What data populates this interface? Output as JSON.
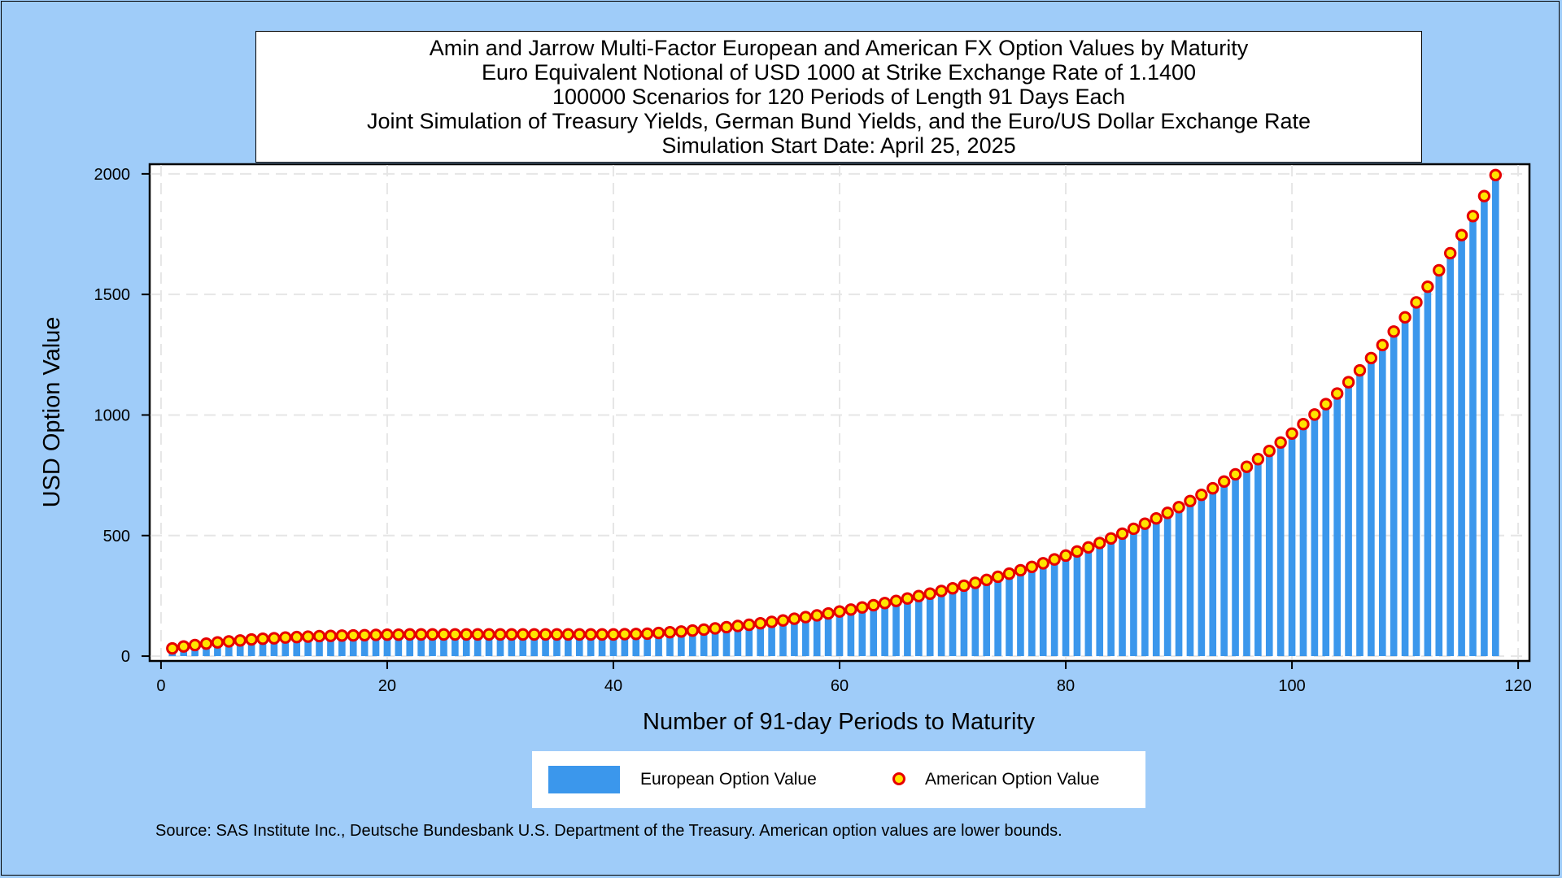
{
  "title_lines": [
    "Amin and Jarrow Multi-Factor European and American FX Option Values by Maturity",
    "Euro Equivalent Notional of USD 1000 at Strike Exchange Rate of  1.1400",
    "100000 Scenarios for 120 Periods of Length 91 Days Each",
    "Joint Simulation of Treasury Yields, German Bund Yields, and the Euro/US Dollar Exchange Rate",
    "Simulation Start Date: April 25, 2025"
  ],
  "legend": {
    "european_label": "European Option Value",
    "american_label": "American Option Value"
  },
  "source_note": "Source: SAS Institute Inc., Deutsche Bundesbank U.S. Department of the Treasury. American option values are lower bounds.",
  "colors": {
    "page_background": "#9fccf9",
    "bar": "#3b97ec",
    "marker_fill": "#ffe400",
    "marker_edge": "#e60000"
  },
  "chart_data": {
    "type": "bar",
    "xlabel": "Number of 91-day Periods to Maturity",
    "ylabel": "USD Option Value",
    "xlim": [
      -1,
      121
    ],
    "ylim": [
      -20,
      2040
    ],
    "xticks": [
      0,
      20,
      40,
      60,
      80,
      100,
      120
    ],
    "yticks": [
      0,
      500,
      1000,
      1500,
      2000
    ],
    "grid": true,
    "legend_position": "bottom",
    "x": [
      1,
      2,
      3,
      4,
      5,
      6,
      7,
      8,
      9,
      10,
      11,
      12,
      13,
      14,
      15,
      16,
      17,
      18,
      19,
      20,
      21,
      22,
      23,
      24,
      25,
      26,
      27,
      28,
      29,
      30,
      31,
      32,
      33,
      34,
      35,
      36,
      37,
      38,
      39,
      40,
      41,
      42,
      43,
      44,
      45,
      46,
      47,
      48,
      49,
      50,
      51,
      52,
      53,
      54,
      55,
      56,
      57,
      58,
      59,
      60,
      61,
      62,
      63,
      64,
      65,
      66,
      67,
      68,
      69,
      70,
      71,
      72,
      73,
      74,
      75,
      76,
      77,
      78,
      79,
      80,
      81,
      82,
      83,
      84,
      85,
      86,
      87,
      88,
      89,
      90,
      91,
      92,
      93,
      94,
      95,
      96,
      97,
      98,
      99,
      100,
      101,
      102,
      103,
      104,
      105,
      106,
      107,
      108,
      109,
      110,
      111,
      112,
      113,
      114,
      115,
      116,
      117,
      118
    ],
    "series": [
      {
        "name": "European Option Value",
        "style": "bar",
        "values": [
          32,
          40,
          46,
          52,
          57,
          61,
          65,
          69,
          72,
          74,
          77,
          79,
          81,
          83,
          84,
          85,
          86,
          87,
          88,
          89,
          89,
          90,
          90,
          90,
          90,
          90,
          90,
          90,
          90,
          90,
          90,
          90,
          90,
          90,
          90,
          90,
          90,
          90,
          90,
          90,
          91,
          92,
          93,
          96,
          99,
          102,
          106,
          110,
          115,
          120,
          125,
          130,
          136,
          142,
          148,
          155,
          162,
          169,
          177,
          185,
          193,
          202,
          211,
          220,
          229,
          239,
          249,
          259,
          270,
          281,
          292,
          304,
          316,
          329,
          342,
          356,
          370,
          385,
          401,
          417,
          434,
          451,
          469,
          488,
          508,
          528,
          549,
          571,
          594,
          618,
          643,
          669,
          696,
          724,
          754,
          785,
          817,
          851,
          886,
          923,
          962,
          1002,
          1045,
          1089,
          1136,
          1185,
          1236,
          1290,
          1346,
          1405,
          1467,
          1532,
          1600,
          1671,
          1746,
          1825,
          1908,
          1995
        ]
      },
      {
        "name": "American Option Value",
        "style": "marker",
        "values": [
          32,
          40,
          46,
          52,
          57,
          61,
          65,
          69,
          72,
          74,
          77,
          79,
          81,
          83,
          84,
          85,
          86,
          87,
          88,
          89,
          89,
          90,
          90,
          90,
          90,
          90,
          90,
          90,
          90,
          90,
          90,
          90,
          90,
          90,
          90,
          90,
          90,
          90,
          90,
          90,
          91,
          92,
          93,
          96,
          99,
          102,
          106,
          110,
          115,
          120,
          125,
          130,
          136,
          142,
          148,
          155,
          162,
          169,
          177,
          185,
          193,
          202,
          211,
          220,
          229,
          239,
          249,
          259,
          270,
          281,
          292,
          304,
          316,
          329,
          342,
          356,
          370,
          385,
          401,
          417,
          434,
          451,
          469,
          488,
          508,
          528,
          549,
          571,
          594,
          618,
          643,
          669,
          696,
          724,
          754,
          785,
          817,
          851,
          886,
          923,
          962,
          1002,
          1045,
          1089,
          1136,
          1185,
          1236,
          1290,
          1346,
          1405,
          1467,
          1532,
          1600,
          1671,
          1746,
          1825,
          1908,
          1995
        ]
      }
    ]
  }
}
